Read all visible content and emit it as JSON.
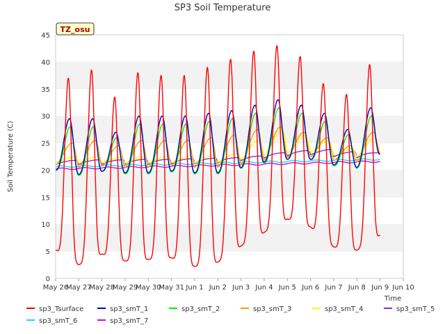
{
  "chart_data": {
    "type": "line",
    "title": "SP3 Soil Temperature",
    "xlabel": "Time",
    "ylabel": "Soil Temperature (C)",
    "ylim": [
      0,
      45
    ],
    "yticks": [
      0,
      5,
      10,
      15,
      20,
      25,
      30,
      35,
      40,
      45
    ],
    "xlim": [
      0,
      15
    ],
    "xtick_labels": [
      "May 26",
      "May 27",
      "May 28",
      "May 29",
      "May 30",
      "May 31",
      "Jun 1",
      "Jun 2",
      "Jun 3",
      "Jun 4",
      "Jun 5",
      "Jun 6",
      "Jun 7",
      "Jun 8",
      "Jun 9",
      "Jun 10"
    ],
    "grid": true,
    "annotation": "TZ_osu",
    "legend": "bottom",
    "series": [
      {
        "name": "sp3_Tsurface",
        "color": "#ff0000",
        "days": 14.0,
        "peaks": [
          37,
          38.5,
          33.5,
          38,
          37.5,
          37.5,
          39,
          40.5,
          42,
          43,
          41,
          36,
          34,
          39.5
        ],
        "mins": [
          5.3,
          2.5,
          4.5,
          3.2,
          3.5,
          3.8,
          2.2,
          3.0,
          6.0,
          8.5,
          11.0,
          9.5,
          5.8,
          5.2,
          8.0
        ],
        "peak_phase": 0.55,
        "sharp": 6
      },
      {
        "name": "sp3_smT_1",
        "color": "#0000cc",
        "days": 14.0,
        "peaks": [
          29.5,
          29.5,
          27,
          30,
          30,
          30,
          30.5,
          31,
          32,
          33,
          32,
          30.5,
          27.5,
          31.5
        ],
        "mins": [
          20,
          19.2,
          19.8,
          19.5,
          19.5,
          19.8,
          19.5,
          19.5,
          20.5,
          21.5,
          22,
          22,
          21,
          20.5,
          23
        ],
        "peak_phase": 0.6,
        "sharp": 3
      },
      {
        "name": "sp3_smT_2",
        "color": "#00ee00",
        "days": 14.0,
        "peaks": [
          28,
          28,
          26,
          28.5,
          28.5,
          28.5,
          29,
          29.5,
          30.5,
          31.5,
          30.5,
          29,
          26.5,
          30
        ],
        "mins": [
          20,
          19,
          19.8,
          19.3,
          19.3,
          19.7,
          19.3,
          19.3,
          20.3,
          21.3,
          22,
          22,
          20.8,
          20.3,
          23
        ],
        "peak_phase": 0.63,
        "sharp": 3
      },
      {
        "name": "sp3_smT_3",
        "color": "#ff9900",
        "days": 14.0,
        "peaks": [
          25,
          25.5,
          24.5,
          25.5,
          25.5,
          25.5,
          26,
          26.5,
          27.5,
          28,
          27,
          26,
          24.5,
          27
        ],
        "mins": [
          21,
          20.5,
          20.8,
          20.5,
          20.5,
          20.8,
          20.5,
          20.5,
          21,
          21.8,
          22.3,
          22.5,
          21.8,
          21.5,
          23
        ],
        "peak_phase": 0.72,
        "sharp": 2
      },
      {
        "name": "sp3_smT_4",
        "color": "#ffff00",
        "days": 14.0,
        "peaks": [
          22.5,
          22.5,
          22.3,
          22.5,
          22.5,
          22.6,
          22.7,
          23,
          25.5,
          27.5,
          26.5,
          25.5,
          24,
          26
        ],
        "mins": [
          21.5,
          21.3,
          21.4,
          21.3,
          21.3,
          21.4,
          21.4,
          21.5,
          22,
          22.8,
          23.2,
          23.4,
          22.8,
          22.5,
          23
        ],
        "peak_phase": 0.8,
        "sharp": 2
      },
      {
        "name": "sp3_smT_5",
        "color": "#8a2be2",
        "days": 14.0,
        "peaks": [
          21.8,
          21.9,
          21.9,
          22,
          22,
          22.1,
          22.2,
          22.3,
          22.6,
          23.2,
          23.6,
          23.8,
          23.4,
          23.2
        ],
        "mins": [
          21.0,
          21.0,
          21.0,
          21.1,
          21.1,
          21.2,
          21.3,
          21.4,
          21.7,
          22.2,
          22.6,
          22.8,
          22.4,
          22.2,
          23.1
        ],
        "peak_phase": 0.9,
        "sharp": 1
      },
      {
        "name": "sp3_smT_6",
        "color": "#00e5ee",
        "days": 14.0,
        "start": 20.6,
        "end": 22.0
      },
      {
        "name": "sp3_smT_7",
        "color": "#dd00dd",
        "days": 14.0,
        "start": 20.2,
        "end": 21.6
      }
    ]
  }
}
